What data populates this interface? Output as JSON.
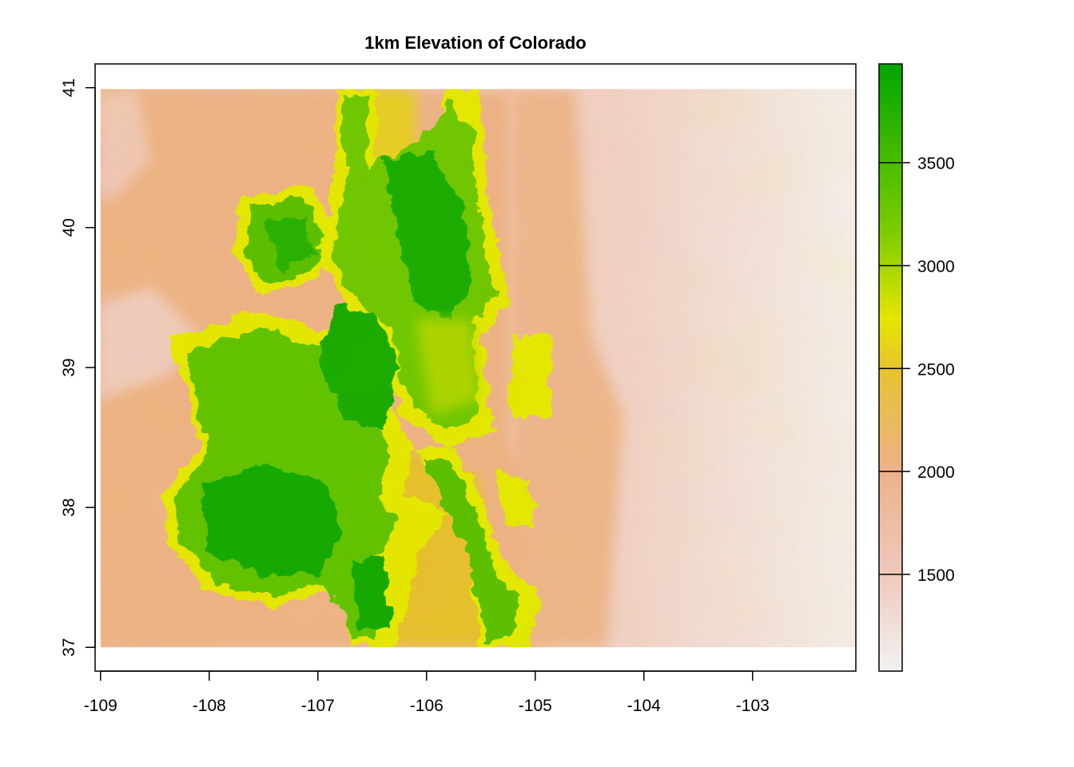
{
  "chart_data": {
    "type": "heatmap",
    "title": "1km Elevation of Colorado",
    "xlabel": "",
    "ylabel": "",
    "x_ticks": [
      {
        "value": -109,
        "label": "-109"
      },
      {
        "value": -108,
        "label": "-108"
      },
      {
        "value": -107,
        "label": "-107"
      },
      {
        "value": -106,
        "label": "-106"
      },
      {
        "value": -105,
        "label": "-105"
      },
      {
        "value": -104,
        "label": "-104"
      },
      {
        "value": -103,
        "label": "-103"
      }
    ],
    "y_ticks": [
      {
        "value": 37,
        "label": "37"
      },
      {
        "value": 38,
        "label": "38"
      },
      {
        "value": 39,
        "label": "39"
      },
      {
        "value": 40,
        "label": "40"
      },
      {
        "value": 41,
        "label": "41"
      }
    ],
    "xlim": [
      -109.05,
      -102.05
    ],
    "ylim": [
      36.83,
      41.17
    ],
    "raster_extent": {
      "xmin": -109.0,
      "xmax": -102.05,
      "ymin": 37.0,
      "ymax": 40.99
    },
    "legend": {
      "placement": "right",
      "range": [
        1030,
        3980
      ],
      "ticks": [
        {
          "value": 1500,
          "label": "1500"
        },
        {
          "value": 2000,
          "label": "2000"
        },
        {
          "value": 2500,
          "label": "2500"
        },
        {
          "value": 3000,
          "label": "3000"
        },
        {
          "value": 3500,
          "label": "3500"
        }
      ]
    },
    "colormap": [
      "#F2F2F2",
      "#EFC8BC",
      "#EDB189",
      "#E8C32E",
      "#E6E600",
      "#7ECD00",
      "#00A600"
    ]
  }
}
